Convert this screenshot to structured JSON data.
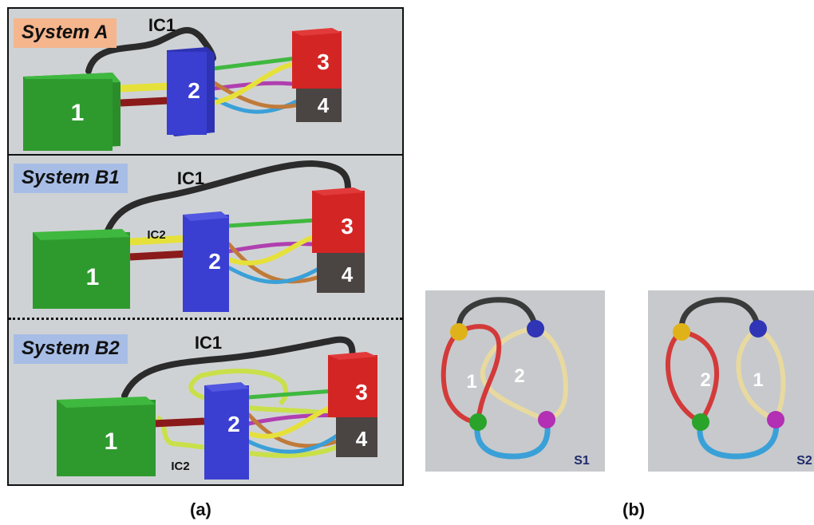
{
  "panel_a": {
    "system_a": {
      "title": "System A",
      "ic1": "IC1",
      "box1": "1",
      "box2": "2",
      "box3": "3",
      "box4": "4"
    },
    "system_b1": {
      "title": "System B1",
      "ic1": "IC1",
      "ic2": "IC2",
      "box1": "1",
      "box2": "2",
      "box3": "3",
      "box4": "4"
    },
    "system_b2": {
      "title": "System B2",
      "ic1": "IC1",
      "ic2": "IC2",
      "box1": "1",
      "box2": "2",
      "box3": "3",
      "box4": "4"
    },
    "caption": "(a)"
  },
  "panel_b": {
    "s1": {
      "label": "S1",
      "loop_left": "1",
      "loop_right": "2"
    },
    "s2": {
      "label": "S2",
      "loop_left": "2",
      "loop_right": "1"
    },
    "caption": "(b)"
  },
  "colors": {
    "box1": "#2e9a2e",
    "box2": "#3a3fd1",
    "box3": "#d42525",
    "box4": "#4a4542",
    "wire_black": "#2b2b2b",
    "wire_green": "#3fb83f",
    "wire_yellow": "#e6e13a",
    "wire_red": "#8b1a1a",
    "wire_magenta": "#b03fb0",
    "wire_cyan": "#3aa0d8",
    "wire_orange": "#c07a3a",
    "ic2_loop": "#c9e04a",
    "tag_a": "#f5b58d",
    "tag_b": "#a7bde6"
  }
}
